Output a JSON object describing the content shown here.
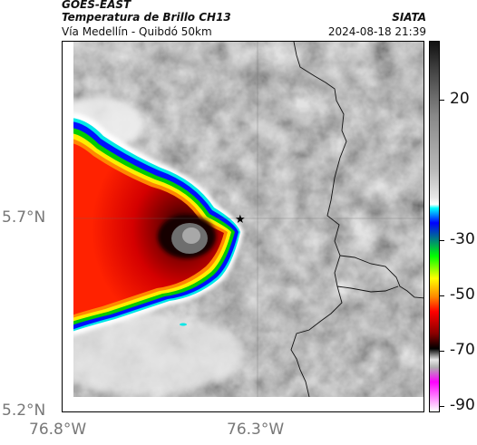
{
  "header": {
    "satellite": "GOES-EAST",
    "product": "Temperatura de Brillo CH13",
    "route": "Vía Medellín - Quibdó 50km",
    "org": "SIATA",
    "datetime": "2024-08-18 21:39"
  },
  "axes": {
    "y_ticks": [
      "5.7°N",
      "5.2°N"
    ],
    "x_ticks": [
      "76.8°W",
      "76.3°W"
    ]
  },
  "colorbar": {
    "ticks": [
      "20",
      "-30",
      "-50",
      "-70",
      "-90"
    ],
    "colors": [
      "#000000",
      "#ffffff",
      "#ff00ff",
      "#00ffff",
      "#0000ff",
      "#00ff00",
      "#ffff00",
      "#ff0000",
      "#000000"
    ]
  },
  "map": {
    "background_color": "#8c8c8c",
    "cloud_core_color": "#ff1a00",
    "marker_icon": "star-icon"
  }
}
